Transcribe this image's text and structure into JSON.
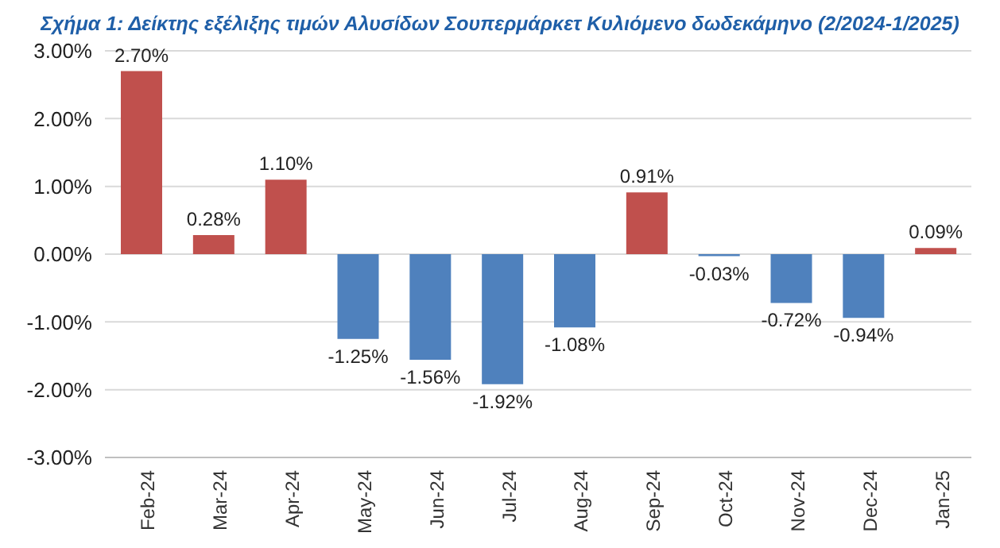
{
  "chart_data": {
    "type": "bar",
    "title": "Σχήμα 1: Δείκτης εξέλιξης τιμών Αλυσίδων Σουπερμάρκετ Κυλιόμενο δωδεκάμηνο (2/2024-1/2025)",
    "categories": [
      "Feb-24",
      "Mar-24",
      "Apr-24",
      "May-24",
      "Jun-24",
      "Jul-24",
      "Aug-24",
      "Sep-24",
      "Oct-24",
      "Nov-24",
      "Dec-24",
      "Jan-25"
    ],
    "values": [
      2.7,
      0.28,
      1.1,
      -1.25,
      -1.56,
      -1.92,
      -1.08,
      0.91,
      -0.03,
      -0.72,
      -0.94,
      0.09
    ],
    "colors": [
      "#c0504d",
      "#c0504d",
      "#c0504d",
      "#4f81bd",
      "#4f81bd",
      "#4f81bd",
      "#4f81bd",
      "#c0504d",
      "#4f81bd",
      "#4f81bd",
      "#4f81bd",
      "#c0504d"
    ],
    "value_labels": [
      "2.70%",
      "0.28%",
      "1.10%",
      "-1.25%",
      "-1.56%",
      "-1.92%",
      "-1.08%",
      "0.91%",
      "-0.03%",
      "-0.72%",
      "-0.94%",
      "0.09%"
    ],
    "ylim": [
      -3,
      3
    ],
    "yticks": [
      {
        "value": -3,
        "label": "-3.00%"
      },
      {
        "value": -2,
        "label": "-2.00%"
      },
      {
        "value": -1,
        "label": "-1.00%"
      },
      {
        "value": 0,
        "label": "0.00%"
      },
      {
        "value": 1,
        "label": "1.00%"
      },
      {
        "value": 2,
        "label": "2.00%"
      },
      {
        "value": 3,
        "label": "3.00%"
      }
    ],
    "grid": "y",
    "legend": false
  }
}
